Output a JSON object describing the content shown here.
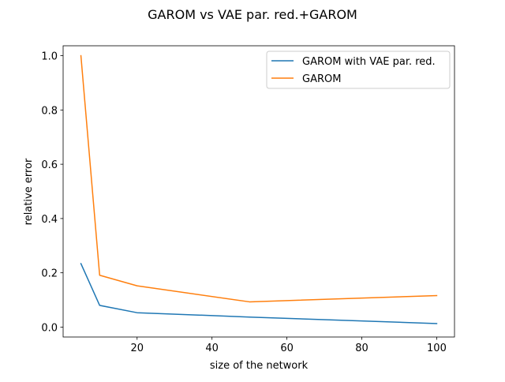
{
  "chart_data": {
    "type": "line",
    "title": "GAROM vs VAE par. red.+GAROM",
    "xlabel": "size of the network",
    "ylabel": "relative error",
    "xlim": [
      0.25,
      104.75
    ],
    "ylim": [
      -0.0366,
      1.0366
    ],
    "x_ticks": [
      20,
      40,
      60,
      80,
      100
    ],
    "x_tick_labels": [
      "20",
      "40",
      "60",
      "80",
      "100"
    ],
    "y_ticks": [
      0.0,
      0.2,
      0.4,
      0.6,
      0.8,
      1.0
    ],
    "y_tick_labels": [
      "0.0",
      "0.2",
      "0.4",
      "0.6",
      "0.8",
      "1.0"
    ],
    "grid": false,
    "legend_position": "upper right",
    "series": [
      {
        "name": "GAROM with VAE par. red.",
        "color": "#1f77b4",
        "x": [
          5,
          10,
          20,
          50,
          100
        ],
        "y": [
          0.234,
          0.08,
          0.053,
          0.037,
          0.013
        ]
      },
      {
        "name": "GAROM",
        "color": "#ff7f0e",
        "x": [
          5,
          10,
          20,
          50,
          100
        ],
        "y": [
          1.0,
          0.191,
          0.152,
          0.093,
          0.116
        ]
      }
    ]
  }
}
